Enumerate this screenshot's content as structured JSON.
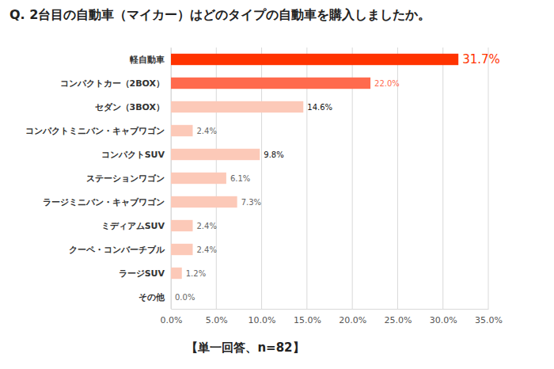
{
  "chart_data": {
    "type": "bar",
    "orientation": "horizontal",
    "title": "Q. 2台目の自動車（マイカー）はどのタイプの自動車を購入しましたか。",
    "annotations": [
      "【単一回答、n=82】"
    ],
    "categories": [
      "軽自動車",
      "コンパクトカー（2BOX）",
      "セダン（3BOX）",
      "コンパクトミニバン・キャブワゴン",
      "コンパクトSUV",
      "ステーションワゴン",
      "ラージミニバン・キャブワゴン",
      "ミディアムSUV",
      "クーペ・コンバーチブル",
      "ラージSUV",
      "その他"
    ],
    "values": [
      31.7,
      22.0,
      14.6,
      2.4,
      9.8,
      6.1,
      7.3,
      2.4,
      2.4,
      1.2,
      0.0
    ],
    "value_labels": [
      "31.7%",
      "22.0%",
      "14.6%",
      "2.4%",
      "9.8%",
      "6.1%",
      "7.3%",
      "2.4%",
      "2.4%",
      "1.2%",
      "0.0%"
    ],
    "colors": [
      "#ff3300",
      "#ff6a4d",
      "#fcc9b8",
      "#fcc9b8",
      "#fcc9b8",
      "#fcc9b8",
      "#fcc9b8",
      "#fcc9b8",
      "#fcc9b8",
      "#fcc9b8",
      "#fcc9b8"
    ],
    "xlim": [
      0,
      35
    ],
    "xticks": [
      {
        "value": 0,
        "label": "0.0%"
      },
      {
        "value": 5,
        "label": "5.0%"
      },
      {
        "value": 10,
        "label": "10.0%"
      },
      {
        "value": 15,
        "label": "15.0%"
      },
      {
        "value": 20,
        "label": "20.0%"
      },
      {
        "value": 25,
        "label": "25.0%"
      },
      {
        "value": 30,
        "label": "30.0%"
      },
      {
        "value": 35,
        "label": "35.0%"
      }
    ],
    "grid": true,
    "data_labels": true
  }
}
